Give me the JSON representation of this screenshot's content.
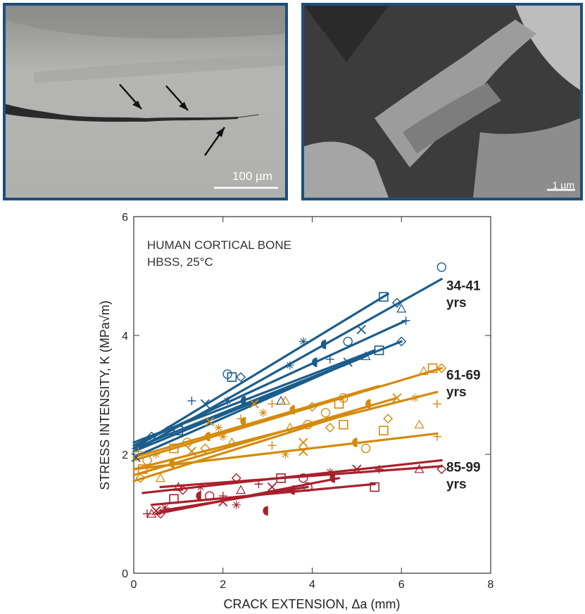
{
  "micrographs": {
    "left": {
      "scale_label": "100 µm"
    },
    "right": {
      "scale_label": "1 µm"
    }
  },
  "chart_data": {
    "type": "scatter",
    "annotation_lines": [
      "HUMAN CORTICAL BONE",
      "HBSS, 25°C"
    ],
    "xlabel": "CRACK EXTENSION, Δa (mm)",
    "ylabel": "STRESS INTENSITY, K (MPa√m)",
    "xlim": [
      0,
      8
    ],
    "ylim": [
      0,
      6
    ],
    "xticks": [
      "0",
      "2",
      "4",
      "6",
      "8"
    ],
    "yticks": [
      "0",
      "2",
      "4",
      "6"
    ],
    "grid": false,
    "groups": [
      {
        "name": "34-41 yrs",
        "label_lines": [
          "34-41",
          "yrs"
        ],
        "color": "#1b5d8c",
        "fits": [
          {
            "x": [
              0.0,
              5.7
            ],
            "y": [
              2.1,
              4.7
            ]
          },
          {
            "x": [
              0.0,
              6.9
            ],
            "y": [
              2.05,
              4.95
            ]
          },
          {
            "x": [
              0.0,
              6.1
            ],
            "y": [
              2.15,
              4.25
            ]
          },
          {
            "x": [
              0.0,
              6.0
            ],
            "y": [
              2.1,
              3.9
            ]
          },
          {
            "x": [
              0.0,
              5.4
            ],
            "y": [
              2.2,
              3.75
            ]
          },
          {
            "x": [
              0.0,
              5.2
            ],
            "y": [
              2.05,
              3.65
            ]
          },
          {
            "x": [
              0.0,
              5.0
            ],
            "y": [
              1.95,
              3.6
            ]
          }
        ],
        "points": [
          {
            "x": 6.9,
            "y": 5.15
          },
          {
            "x": 5.6,
            "y": 4.65
          },
          {
            "x": 5.9,
            "y": 4.55
          },
          {
            "x": 6.0,
            "y": 4.45
          },
          {
            "x": 6.1,
            "y": 4.25
          },
          {
            "x": 5.1,
            "y": 4.1
          },
          {
            "x": 3.8,
            "y": 3.9
          },
          {
            "x": 4.3,
            "y": 3.85
          },
          {
            "x": 4.8,
            "y": 3.9
          },
          {
            "x": 5.5,
            "y": 3.75
          },
          {
            "x": 6.0,
            "y": 3.9
          },
          {
            "x": 5.2,
            "y": 3.65
          },
          {
            "x": 4.4,
            "y": 3.6
          },
          {
            "x": 4.8,
            "y": 3.55
          },
          {
            "x": 3.5,
            "y": 3.5
          },
          {
            "x": 4.1,
            "y": 3.55
          },
          {
            "x": 2.1,
            "y": 3.35
          },
          {
            "x": 2.2,
            "y": 3.3
          },
          {
            "x": 2.4,
            "y": 3.3
          },
          {
            "x": 3.3,
            "y": 2.9
          },
          {
            "x": 1.3,
            "y": 2.9
          },
          {
            "x": 1.6,
            "y": 2.85
          },
          {
            "x": 2.1,
            "y": 2.9
          },
          {
            "x": 2.5,
            "y": 2.9
          },
          {
            "x": 0.8,
            "y": 2.4
          },
          {
            "x": 1.0,
            "y": 2.4
          },
          {
            "x": 0.4,
            "y": 2.3
          },
          {
            "x": 0.2,
            "y": 2.2
          },
          {
            "x": 0.05,
            "y": 2.1
          },
          {
            "x": 0.05,
            "y": 1.95
          }
        ]
      },
      {
        "name": "61-69 yrs",
        "label_lines": [
          "61-69",
          "yrs"
        ],
        "color": "#d48a0c",
        "fits": [
          {
            "x": [
              0.0,
              5.5
            ],
            "y": [
              1.95,
              3.15
            ]
          },
          {
            "x": [
              0.0,
              6.9
            ],
            "y": [
              1.9,
              3.45
            ]
          },
          {
            "x": [
              0.0,
              6.8
            ],
            "y": [
              1.75,
              3.05
            ]
          },
          {
            "x": [
              0.0,
              5.9
            ],
            "y": [
              1.65,
              2.95
            ]
          },
          {
            "x": [
              0.0,
              4.9
            ],
            "y": [
              1.55,
              2.7
            ]
          },
          {
            "x": [
              0.0,
              6.8
            ],
            "y": [
              1.75,
              2.35
            ]
          }
        ],
        "points": [
          {
            "x": 6.7,
            "y": 3.45
          },
          {
            "x": 6.9,
            "y": 3.45
          },
          {
            "x": 6.5,
            "y": 3.4
          },
          {
            "x": 6.8,
            "y": 2.85
          },
          {
            "x": 5.9,
            "y": 2.95
          },
          {
            "x": 6.3,
            "y": 2.95
          },
          {
            "x": 5.3,
            "y": 2.85
          },
          {
            "x": 4.7,
            "y": 2.95
          },
          {
            "x": 4.6,
            "y": 2.85
          },
          {
            "x": 4.0,
            "y": 2.8
          },
          {
            "x": 3.4,
            "y": 2.9
          },
          {
            "x": 3.1,
            "y": 2.85
          },
          {
            "x": 2.7,
            "y": 2.85
          },
          {
            "x": 2.9,
            "y": 2.7
          },
          {
            "x": 3.6,
            "y": 2.75
          },
          {
            "x": 4.3,
            "y": 2.7
          },
          {
            "x": 4.7,
            "y": 2.5
          },
          {
            "x": 4.4,
            "y": 2.45
          },
          {
            "x": 3.5,
            "y": 2.45
          },
          {
            "x": 2.4,
            "y": 2.6
          },
          {
            "x": 1.7,
            "y": 2.55
          },
          {
            "x": 1.9,
            "y": 2.45
          },
          {
            "x": 1.7,
            "y": 2.3
          },
          {
            "x": 1.2,
            "y": 2.2
          },
          {
            "x": 0.9,
            "y": 2.1
          },
          {
            "x": 1.6,
            "y": 2.1
          },
          {
            "x": 2.2,
            "y": 2.2
          },
          {
            "x": 3.1,
            "y": 2.15
          },
          {
            "x": 3.8,
            "y": 2.2
          },
          {
            "x": 3.4,
            "y": 2.0
          },
          {
            "x": 5.0,
            "y": 2.2
          },
          {
            "x": 5.2,
            "y": 2.1
          },
          {
            "x": 5.6,
            "y": 2.4
          },
          {
            "x": 5.7,
            "y": 2.6
          },
          {
            "x": 6.4,
            "y": 2.5
          },
          {
            "x": 6.8,
            "y": 2.3
          },
          {
            "x": 3.8,
            "y": 2.05
          },
          {
            "x": 0.5,
            "y": 2.0
          },
          {
            "x": 0.9,
            "y": 1.85
          },
          {
            "x": 0.3,
            "y": 1.9
          },
          {
            "x": 0.2,
            "y": 1.75
          },
          {
            "x": 0.15,
            "y": 1.6
          },
          {
            "x": 0.6,
            "y": 1.6
          },
          {
            "x": 0.1,
            "y": 2.05
          },
          {
            "x": 1.3,
            "y": 2.05
          },
          {
            "x": 2.0,
            "y": 2.3
          },
          {
            "x": 2.5,
            "y": 2.55
          },
          {
            "x": 3.9,
            "y": 2.5
          }
        ]
      },
      {
        "name": "85-99 yrs",
        "label_lines": [
          "85-99",
          "yrs"
        ],
        "color": "#a8202c",
        "fits": [
          {
            "x": [
              0.2,
              6.9
            ],
            "y": [
              1.35,
              1.9
            ]
          },
          {
            "x": [
              0.6,
              6.9
            ],
            "y": [
              1.45,
              1.8
            ]
          },
          {
            "x": [
              0.4,
              5.4
            ],
            "y": [
              1.15,
              1.5
            ]
          },
          {
            "x": [
              0.5,
              4.6
            ],
            "y": [
              1.0,
              1.6
            ]
          },
          {
            "x": [
              0.6,
              3.9
            ],
            "y": [
              1.05,
              1.45
            ]
          }
        ],
        "points": [
          {
            "x": 6.9,
            "y": 1.75
          },
          {
            "x": 6.4,
            "y": 1.75
          },
          {
            "x": 5.5,
            "y": 1.75
          },
          {
            "x": 5.0,
            "y": 1.75
          },
          {
            "x": 4.4,
            "y": 1.7
          },
          {
            "x": 4.5,
            "y": 1.6
          },
          {
            "x": 3.8,
            "y": 1.6
          },
          {
            "x": 3.3,
            "y": 1.6
          },
          {
            "x": 2.3,
            "y": 1.6
          },
          {
            "x": 2.4,
            "y": 1.4
          },
          {
            "x": 2.8,
            "y": 1.5
          },
          {
            "x": 3.1,
            "y": 1.45
          },
          {
            "x": 1.5,
            "y": 1.45
          },
          {
            "x": 1.5,
            "y": 1.3
          },
          {
            "x": 1.7,
            "y": 1.3
          },
          {
            "x": 0.9,
            "y": 1.25
          },
          {
            "x": 1.1,
            "y": 1.4
          },
          {
            "x": 1.0,
            "y": 1.45
          },
          {
            "x": 2.0,
            "y": 1.3
          },
          {
            "x": 2.0,
            "y": 1.2
          },
          {
            "x": 2.3,
            "y": 1.15
          },
          {
            "x": 3.6,
            "y": 1.4
          },
          {
            "x": 3.9,
            "y": 1.45
          },
          {
            "x": 5.4,
            "y": 1.45
          },
          {
            "x": 0.6,
            "y": 1.0
          },
          {
            "x": 0.4,
            "y": 1.0
          },
          {
            "x": 0.3,
            "y": 1.0
          },
          {
            "x": 0.5,
            "y": 1.05
          },
          {
            "x": 0.7,
            "y": 1.1
          },
          {
            "x": 3.0,
            "y": 1.05
          }
        ]
      }
    ]
  }
}
